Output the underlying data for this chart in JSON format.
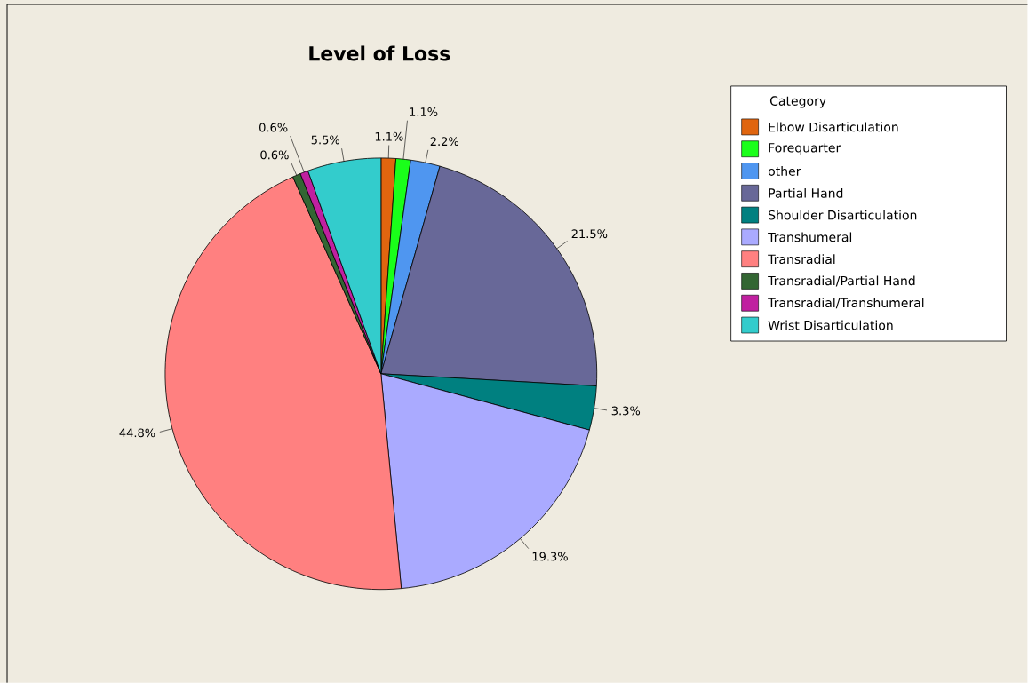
{
  "chart_data": {
    "type": "pie",
    "title": "Level of Loss",
    "legend_title": "Category",
    "legend": "top right",
    "categories": [
      "Elbow Disarticulation",
      "Forequarter",
      "other",
      "Partial Hand",
      "Shoulder Disarticulation",
      "Transhumeral",
      "Transradial",
      "Transradial/Partial Hand",
      "Transradial/Transhumeral",
      "Wrist Disarticulation"
    ],
    "values": [
      1.1,
      1.1,
      2.2,
      21.5,
      3.3,
      19.3,
      44.8,
      0.6,
      0.6,
      5.5
    ],
    "value_labels": [
      "1.1%",
      "1.1%",
      "2.2%",
      "21.5%",
      "3.3%",
      "19.3%",
      "44.8%",
      "0.6%",
      "0.6%",
      "5.5%"
    ],
    "colors": [
      "#e0650f",
      "#1aff1a",
      "#4f96f0",
      "#686898",
      "#008080",
      "#aaaaff",
      "#ff8080",
      "#336633",
      "#c020a0",
      "#33cccc"
    ]
  }
}
